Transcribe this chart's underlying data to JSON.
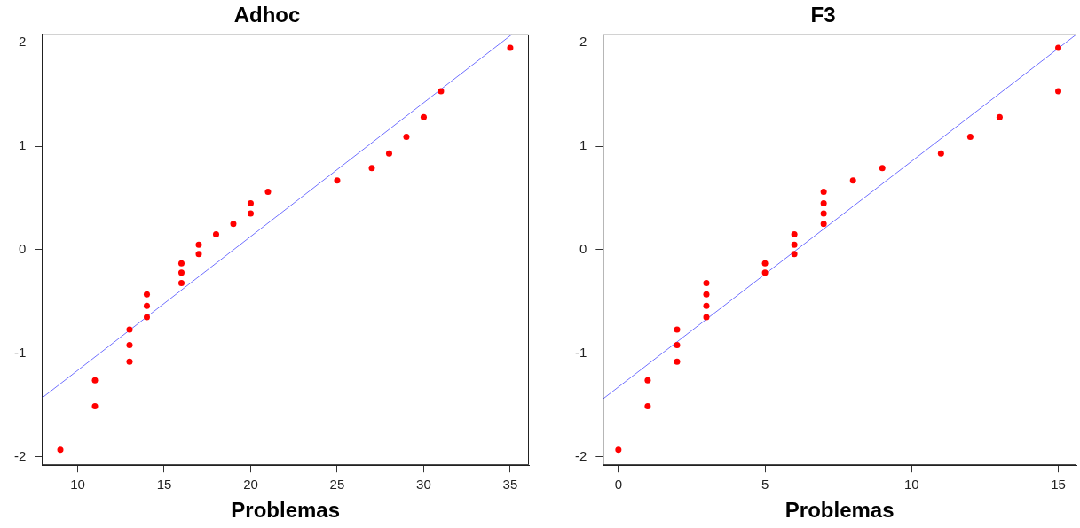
{
  "chart_data": [
    {
      "type": "scatter",
      "title": "Adhoc",
      "xlabel": "Problemas",
      "xlim": [
        7.94,
        36.08
      ],
      "xticks": [
        10,
        15,
        20,
        25,
        30,
        35
      ],
      "ylim": [
        -2.08,
        2.08
      ],
      "yticks": [
        -2,
        -1,
        0,
        1,
        2
      ],
      "grid": false,
      "legend": false,
      "marker": "circle",
      "series": [
        {
          "type": "scatter",
          "color": "#ff0000",
          "x": [
            9,
            11,
            11,
            13,
            13,
            13,
            14,
            14,
            14,
            16,
            16,
            16,
            17,
            17,
            18,
            19,
            20,
            20,
            21,
            25,
            27,
            28,
            29,
            30,
            31,
            35
          ],
          "values": [
            -1.93,
            -1.51,
            -1.26,
            -1.08,
            -0.92,
            -0.77,
            -0.65,
            -0.54,
            -0.43,
            -0.32,
            -0.22,
            -0.13,
            -0.04,
            0.05,
            0.15,
            0.25,
            0.35,
            0.45,
            0.56,
            0.67,
            0.79,
            0.93,
            1.09,
            1.28,
            1.53,
            1.95
          ]
        },
        {
          "type": "line",
          "color": "#7070ff",
          "marker": "none",
          "x": [
            7.94,
            35.1
          ],
          "values": [
            -1.43,
            2.08
          ]
        }
      ]
    },
    {
      "type": "scatter",
      "title": "F3",
      "xlabel": "Problemas",
      "xlim": [
        -0.53,
        15.62
      ],
      "xticks": [
        0,
        5,
        10,
        15
      ],
      "ylim": [
        -2.08,
        2.08
      ],
      "yticks": [
        -2,
        -1,
        0,
        1,
        2
      ],
      "grid": false,
      "legend": false,
      "marker": "circle",
      "series": [
        {
          "type": "scatter",
          "color": "#ff0000",
          "x": [
            0,
            1,
            1,
            2,
            2,
            2,
            3,
            3,
            3,
            3,
            5,
            5,
            6,
            6,
            6,
            7,
            7,
            7,
            7,
            8,
            9,
            11,
            12,
            13,
            15,
            15
          ],
          "values": [
            -1.93,
            -1.51,
            -1.26,
            -1.08,
            -0.92,
            -0.77,
            -0.65,
            -0.54,
            -0.43,
            -0.32,
            -0.22,
            -0.13,
            -0.04,
            0.05,
            0.15,
            0.25,
            0.35,
            0.45,
            0.56,
            0.67,
            0.79,
            0.93,
            1.09,
            1.28,
            1.53,
            1.95
          ]
        },
        {
          "type": "line",
          "color": "#7070ff",
          "marker": "none",
          "x": [
            -0.53,
            15.62
          ],
          "values": [
            -1.44,
            2.08
          ]
        }
      ]
    }
  ]
}
